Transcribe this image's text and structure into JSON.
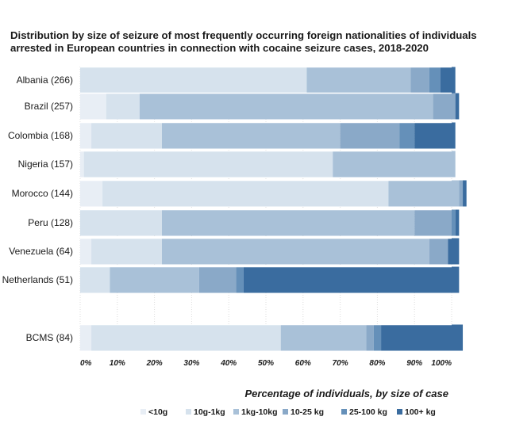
{
  "chart_data": {
    "type": "bar",
    "orientation": "horizontal",
    "stacked": true,
    "title": "Distribution by size of seizure of most frequently occurring foreign nationalities of individuals arrested in European countries in connection with cocaine seizure cases, 2018-2020",
    "xlabel": "Percentage of individuals, by size of case",
    "xlim": [
      0,
      100
    ],
    "xticks": [
      "0%",
      "10%",
      "20%",
      "30%",
      "40%",
      "50%",
      "60%",
      "70%",
      "80%",
      "90%",
      "100%"
    ],
    "grid": true,
    "legend_position": "bottom-right",
    "categories": [
      "Albania (266)",
      "Brazil (257)",
      "Colombia (168)",
      "Nigeria (157)",
      "Morocco (144)",
      "Peru (128)",
      "Venezuela (64)",
      "Netherlands (51)",
      "BCMS (84)"
    ],
    "series": [
      {
        "name": "<10g",
        "color": "#e8eef5",
        "values": [
          0,
          7,
          3,
          1,
          6,
          0,
          3,
          0,
          3
        ]
      },
      {
        "name": "10g-1kg",
        "color": "#d6e2ed",
        "values": [
          61,
          9,
          19,
          67,
          77,
          22,
          19,
          8,
          51
        ]
      },
      {
        "name": "1kg-10kg",
        "color": "#a9c1d8",
        "values": [
          28,
          79,
          48,
          33,
          19,
          68,
          72,
          24,
          23
        ]
      },
      {
        "name": "10-25 kg",
        "color": "#8aa9c8",
        "values": [
          5,
          6,
          16,
          0,
          1,
          10,
          5,
          10,
          2
        ]
      },
      {
        "name": "25-100 kg",
        "color": "#6590b9",
        "values": [
          3,
          0,
          4,
          0,
          0,
          1,
          0,
          2,
          2
        ]
      },
      {
        "name": "100+ kg",
        "color": "#3a6c9f",
        "values": [
          4,
          1,
          11,
          0,
          1,
          1,
          3,
          58,
          22
        ]
      }
    ]
  }
}
